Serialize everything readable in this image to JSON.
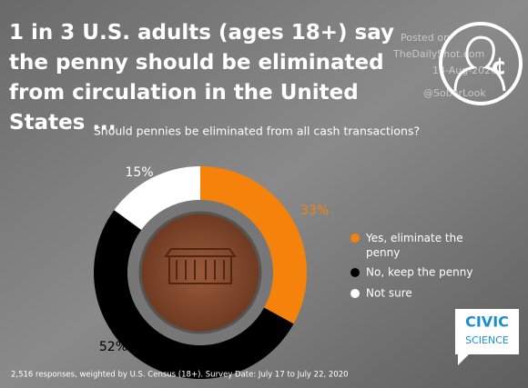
{
  "chart_data": {
    "type": "pie",
    "title": "1 in 3 U.S. adults (ages 18+) say the penny should be eliminated from circulation in the United States ...",
    "subtitle": "Should pennies be eliminated from all cash transactions?",
    "categories": [
      "Yes, eliminate the penny",
      "No, keep the penny",
      "Not sure"
    ],
    "values": [
      33,
      52,
      15
    ],
    "value_labels": [
      "33%",
      "52%",
      "15%"
    ],
    "colors": [
      "#f5820a",
      "#000000",
      "#ffffff"
    ],
    "donut": true,
    "legend": "right",
    "footnote": "2,516 responses, weighted by U.S. Census (18+). Survey Date: July 17 to July 22, 2020"
  },
  "watermark": {
    "lines": [
      "Posted on",
      "TheDailyShot.com",
      "13-Aug-2020",
      "@SoberLook"
    ]
  },
  "logo": {
    "lines": [
      "CIVIC",
      "SCIENCE"
    ]
  }
}
